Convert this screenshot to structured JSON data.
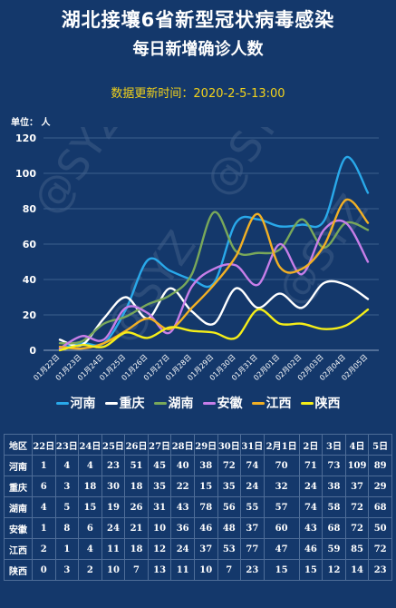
{
  "header": {
    "title": "湖北接壤6省新型冠状病毒感染",
    "subtitle": "每日新增确诊人数",
    "update_time": "数据更新时间：2020-2-5-13:00",
    "unit": "单位： 人"
  },
  "watermark": "@SYZ",
  "colors": {
    "background": "#14386b",
    "河南": "#29a9ea",
    "重庆": "#ffffff",
    "湖南": "#79a85a",
    "安徽": "#c77ee8",
    "江西": "#f2b024",
    "陕西": "#f5ee18"
  },
  "chart_data": {
    "type": "line",
    "x": [
      "01月22日",
      "01月23日",
      "01月24日",
      "01月25日",
      "01月26日",
      "01月27日",
      "01月28日",
      "01月29日",
      "01月30日",
      "01月31日",
      "02月01日",
      "02月02日",
      "02月03日",
      "02月04日",
      "02月05日"
    ],
    "ylim": [
      0,
      120
    ],
    "yticks": [
      0,
      20,
      40,
      60,
      80,
      100,
      120
    ],
    "grid": true,
    "legend_position": "bottom",
    "series": [
      {
        "name": "河南",
        "values": [
          1,
          4,
          4,
          23,
          51,
          45,
          40,
          38,
          72,
          74,
          70,
          71,
          73,
          109,
          89
        ]
      },
      {
        "name": "重庆",
        "values": [
          6,
          3,
          18,
          30,
          18,
          35,
          22,
          15,
          35,
          24,
          32,
          24,
          38,
          37,
          29
        ]
      },
      {
        "name": "湖南",
        "values": [
          4,
          5,
          15,
          19,
          26,
          31,
          43,
          78,
          56,
          55,
          57,
          74,
          58,
          72,
          68
        ]
      },
      {
        "name": "安徽",
        "values": [
          1,
          8,
          6,
          24,
          21,
          10,
          36,
          46,
          48,
          37,
          60,
          43,
          68,
          72,
          50
        ]
      },
      {
        "name": "江西",
        "values": [
          2,
          1,
          4,
          11,
          18,
          12,
          24,
          37,
          53,
          77,
          47,
          46,
          59,
          85,
          72
        ]
      },
      {
        "name": "陕西",
        "values": [
          0,
          3,
          2,
          10,
          7,
          13,
          11,
          10,
          7,
          23,
          15,
          15,
          12,
          14,
          23
        ]
      }
    ]
  },
  "table": {
    "corner": "地区",
    "days": [
      "22日",
      "23日",
      "24日",
      "25日",
      "26日",
      "27日",
      "28日",
      "29日",
      "30日",
      "31日",
      "2月1日",
      "2日",
      "3日",
      "4日",
      "5日"
    ]
  }
}
